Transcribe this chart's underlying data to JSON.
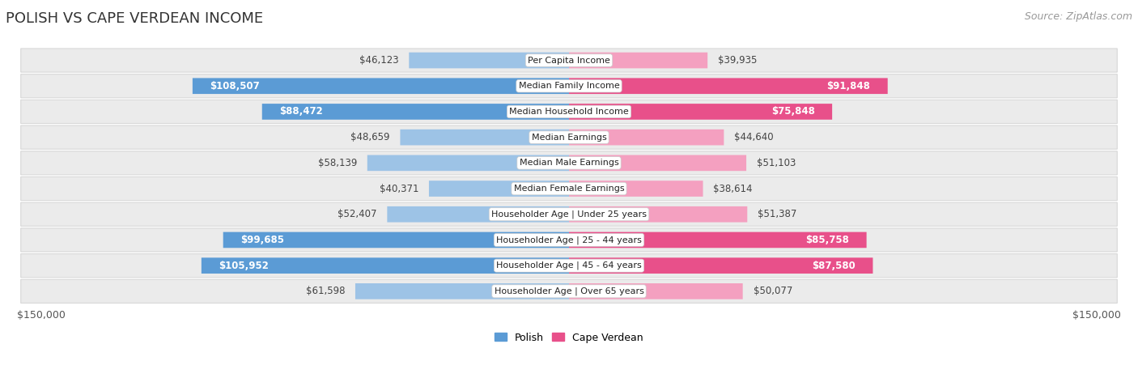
{
  "title": "POLISH VS CAPE VERDEAN INCOME",
  "source": "Source: ZipAtlas.com",
  "categories": [
    "Per Capita Income",
    "Median Family Income",
    "Median Household Income",
    "Median Earnings",
    "Median Male Earnings",
    "Median Female Earnings",
    "Householder Age | Under 25 years",
    "Householder Age | 25 - 44 years",
    "Householder Age | 45 - 64 years",
    "Householder Age | Over 65 years"
  ],
  "polish_values": [
    46123,
    108507,
    88472,
    48659,
    58139,
    40371,
    52407,
    99685,
    105952,
    61598
  ],
  "capeverdean_values": [
    39935,
    91848,
    75848,
    44640,
    51103,
    38614,
    51387,
    85758,
    87580,
    50077
  ],
  "polish_labels": [
    "$46,123",
    "$108,507",
    "$88,472",
    "$48,659",
    "$58,139",
    "$40,371",
    "$52,407",
    "$99,685",
    "$105,952",
    "$61,598"
  ],
  "capeverdean_labels": [
    "$39,935",
    "$91,848",
    "$75,848",
    "$44,640",
    "$51,103",
    "$38,614",
    "$51,387",
    "$85,758",
    "$87,580",
    "$50,077"
  ],
  "polish_color_large": "#5b9bd5",
  "polish_color_small": "#9dc3e6",
  "capeverdean_color_large": "#e8508a",
  "capeverdean_color_small": "#f4a0c0",
  "polish_label_color_inside": "#ffffff",
  "polish_label_color_outside": "#444444",
  "capeverdean_label_color_inside": "#ffffff",
  "capeverdean_label_color_outside": "#444444",
  "large_threshold": 70000,
  "max_value": 150000,
  "bar_height": 0.62,
  "row_bg_color": "#ebebeb",
  "row_bg_edge_color": "#d8d8d8",
  "background_color": "#ffffff",
  "legend_polish": "Polish",
  "legend_capeverdean": "Cape Verdean",
  "xlabel_left": "$150,000",
  "xlabel_right": "$150,000",
  "title_fontsize": 13,
  "source_fontsize": 9,
  "label_fontsize": 8.5,
  "category_fontsize": 8.0,
  "legend_fontsize": 9,
  "axis_label_fontsize": 9
}
